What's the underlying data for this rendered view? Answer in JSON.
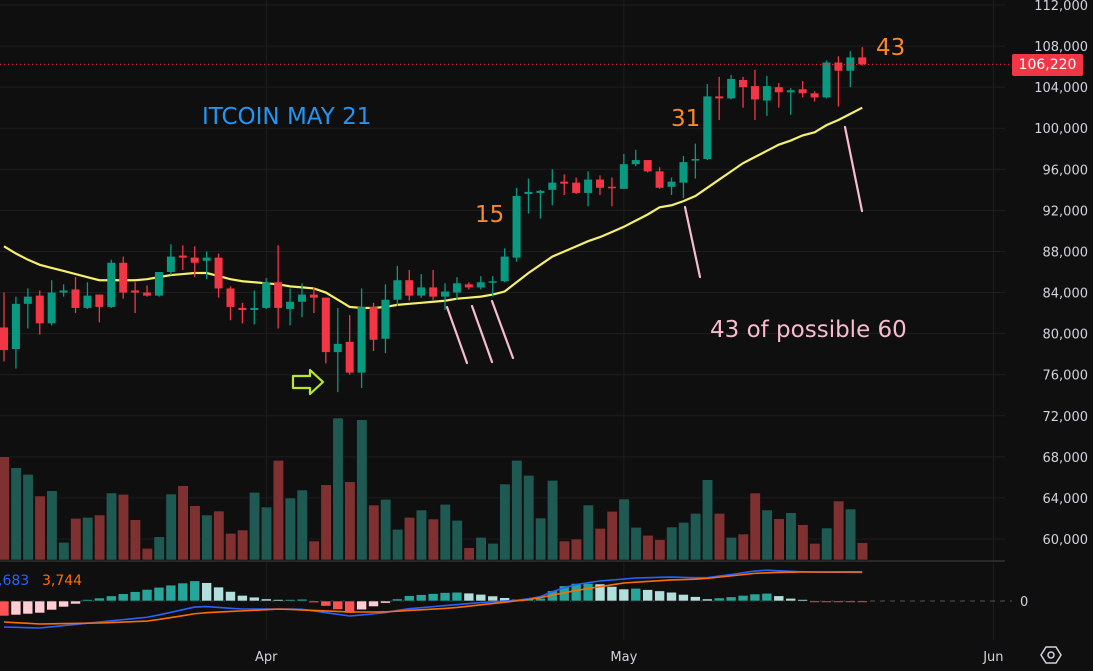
{
  "annotations": {
    "title": "ITCOIN MAY 21",
    "count_15": "15",
    "count_31": "31",
    "count_43": "43",
    "summary": "43 of possible 60"
  },
  "price_tag": "106,220",
  "macd_legend": {
    "macd": ",683",
    "signal": "3,744"
  },
  "time_axis": [
    {
      "label": "Apr",
      "candle_index": 22
    },
    {
      "label": "May",
      "candle_index": 52
    },
    {
      "label": "Jun",
      "candle_index": 83
    }
  ],
  "macd_axis_label": "0",
  "colors": {
    "up": "#089981",
    "down": "#f23645",
    "vol_up": "#1f5a52",
    "vol_down": "#7f3131",
    "ma": "#f5ef6b",
    "macd": "#2962ff",
    "signal": "#ff6d00",
    "annotation_pink": "#f8bbd0",
    "arrow": "#b8e82a"
  },
  "chart_data": {
    "type": "candlestick",
    "title": "ITCOIN MAY 21",
    "ylim": [
      60000,
      112000
    ],
    "y_ticks": [
      {
        "value": 112000,
        "label": "112,000"
      },
      {
        "value": 108000,
        "label": "108,000"
      },
      {
        "value": 104000,
        "label": "104,000"
      },
      {
        "value": 100000,
        "label": "100,000"
      },
      {
        "value": 96000,
        "label": "96,000"
      },
      {
        "value": 92000,
        "label": "92,000"
      },
      {
        "value": 88000,
        "label": "88,000"
      },
      {
        "value": 84000,
        "label": "84,000"
      },
      {
        "value": 80000,
        "label": "80,000"
      },
      {
        "value": 76000,
        "label": "76,000"
      },
      {
        "value": 72000,
        "label": "72,000"
      },
      {
        "value": 68000,
        "label": "68,000"
      },
      {
        "value": 64000,
        "label": "64,000"
      },
      {
        "value": 60000,
        "label": "60,000"
      }
    ],
    "last_price": 106220,
    "ohlc": [
      [
        80600,
        84000,
        77300,
        78400
      ],
      [
        78500,
        83600,
        76600,
        82900
      ],
      [
        82900,
        84400,
        80500,
        83600
      ],
      [
        83700,
        84200,
        79900,
        81000
      ],
      [
        81000,
        85200,
        80800,
        84000
      ],
      [
        84000,
        84800,
        83600,
        84200
      ],
      [
        84300,
        85500,
        82000,
        82500
      ],
      [
        82500,
        85000,
        82400,
        83700
      ],
      [
        83800,
        83800,
        81100,
        82600
      ],
      [
        82600,
        87200,
        82500,
        86900
      ],
      [
        86900,
        87500,
        83400,
        84000
      ],
      [
        84200,
        85000,
        82000,
        84000
      ],
      [
        84000,
        84700,
        83600,
        83700
      ],
      [
        83700,
        86000,
        83600,
        86000
      ],
      [
        86000,
        88700,
        85700,
        87500
      ],
      [
        87600,
        88600,
        86200,
        87400
      ],
      [
        87400,
        88500,
        85500,
        86900
      ],
      [
        87100,
        88000,
        85300,
        87400
      ],
      [
        87400,
        87800,
        83500,
        84400
      ],
      [
        84400,
        84600,
        81300,
        82600
      ],
      [
        82500,
        83000,
        81000,
        82300
      ],
      [
        82300,
        84200,
        80900,
        82500
      ],
      [
        82500,
        85400,
        82400,
        85000
      ],
      [
        85000,
        88600,
        80500,
        82500
      ],
      [
        82400,
        84400,
        80800,
        83100
      ],
      [
        83100,
        84900,
        81600,
        83800
      ],
      [
        83800,
        84500,
        82000,
        83500
      ],
      [
        83500,
        83500,
        77100,
        78200
      ],
      [
        78200,
        82500,
        74300,
        79000
      ],
      [
        79200,
        81800,
        76000,
        76200
      ],
      [
        76200,
        84400,
        74700,
        82600
      ],
      [
        82600,
        83000,
        78300,
        79400
      ],
      [
        79500,
        84800,
        78100,
        83300
      ],
      [
        83300,
        86600,
        82700,
        85200
      ],
      [
        85200,
        86200,
        83200,
        83700
      ],
      [
        83700,
        85800,
        83500,
        84500
      ],
      [
        84500,
        86200,
        83300,
        83600
      ],
      [
        83600,
        84900,
        82300,
        84100
      ],
      [
        84000,
        85500,
        83300,
        84900
      ],
      [
        84800,
        85000,
        84300,
        84500
      ],
      [
        84500,
        85600,
        84300,
        85000
      ],
      [
        85000,
        85600,
        83600,
        85100
      ],
      [
        85100,
        88300,
        85000,
        87500
      ],
      [
        87400,
        94200,
        87000,
        93400
      ],
      [
        93600,
        95100,
        91700,
        93800
      ],
      [
        93700,
        94000,
        91200,
        93900
      ],
      [
        94000,
        96000,
        92500,
        94700
      ],
      [
        94800,
        95500,
        93500,
        94600
      ],
      [
        94700,
        95200,
        93600,
        93700
      ],
      [
        93700,
        95800,
        92400,
        95000
      ],
      [
        95000,
        95400,
        93500,
        94200
      ],
      [
        94300,
        95200,
        92400,
        94200
      ],
      [
        94100,
        97500,
        94100,
        96500
      ],
      [
        96500,
        97900,
        96300,
        96900
      ],
      [
        96900,
        96900,
        95700,
        95800
      ],
      [
        95800,
        96200,
        94100,
        94200
      ],
      [
        94300,
        95200,
        93500,
        94800
      ],
      [
        94700,
        97300,
        93200,
        96700
      ],
      [
        96900,
        98500,
        95100,
        97000
      ],
      [
        97000,
        104300,
        96900,
        103100
      ],
      [
        103100,
        105000,
        100800,
        102900
      ],
      [
        102900,
        105200,
        102800,
        104800
      ],
      [
        104700,
        105000,
        102000,
        104000
      ],
      [
        104100,
        105700,
        100800,
        102800
      ],
      [
        102700,
        105100,
        101200,
        104100
      ],
      [
        104000,
        104400,
        102000,
        103500
      ],
      [
        103500,
        103900,
        101300,
        103700
      ],
      [
        103800,
        104600,
        103000,
        103400
      ],
      [
        103400,
        103600,
        102600,
        103000
      ],
      [
        103000,
        106600,
        102900,
        106400
      ],
      [
        106400,
        107000,
        102100,
        105600
      ],
      [
        105600,
        107500,
        104000,
        106900
      ],
      [
        106900,
        107900,
        106100,
        106220
      ]
    ],
    "volume_relative": [
      310,
      277,
      257,
      192,
      208,
      53,
      125,
      128,
      135,
      201,
      197,
      121,
      35,
      70,
      198,
      223,
      163,
      135,
      147,
      80,
      90,
      203,
      159,
      299,
      186,
      210,
      57,
      226,
      426,
      235,
      421,
      165,
      182,
      92,
      128,
      150,
      123,
      167,
      119,
      37,
      68,
      50,
      228,
      299,
      254,
      126,
      239,
      57,
      63,
      165,
      95,
      146,
      183,
      98,
      74,
      61,
      99,
      113,
      140,
      241,
      140,
      68,
      78,
      201,
      150,
      124,
      142,
      106,
      50,
      96,
      177,
      153,
      52
    ],
    "moving_average": [
      88500,
      87800,
      87200,
      86700,
      86400,
      86100,
      85800,
      85500,
      85200,
      85200,
      85200,
      85200,
      85300,
      85500,
      85700,
      85800,
      85900,
      85900,
      85600,
      85300,
      85100,
      85000,
      84900,
      84800,
      84600,
      84500,
      84400,
      84000,
      83300,
      82600,
      82500,
      82500,
      82600,
      82800,
      82900,
      83000,
      83100,
      83200,
      83400,
      83500,
      83600,
      83800,
      84100,
      85000,
      85900,
      86700,
      87500,
      88000,
      88500,
      89000,
      89400,
      89900,
      90400,
      91000,
      91600,
      92300,
      92500,
      92900,
      93400,
      94200,
      95000,
      95800,
      96600,
      97200,
      97800,
      98400,
      98800,
      99300,
      99600,
      100300,
      100800,
      101400,
      102000
    ],
    "macd": {
      "macd_points": [
        [
          0,
          -3354
        ],
        [
          3,
          -3483
        ],
        [
          8,
          -2709
        ],
        [
          12.2,
          -2064
        ],
        [
          16.4,
          -645
        ],
        [
          19.8,
          -1032
        ],
        [
          24.8,
          -1032
        ],
        [
          29,
          -1935
        ],
        [
          31.8,
          -1548
        ],
        [
          33.7,
          -1032
        ],
        [
          39.5,
          -258
        ],
        [
          43.4,
          129
        ],
        [
          45.3,
          645
        ],
        [
          46.3,
          1419
        ],
        [
          48.2,
          2193
        ],
        [
          50,
          2580
        ],
        [
          53,
          2967
        ],
        [
          55.9,
          3096
        ],
        [
          58.8,
          2967
        ],
        [
          60.7,
          3354
        ],
        [
          63.6,
          3999
        ],
        [
          67.4,
          3741
        ],
        [
          72,
          3683
        ]
      ],
      "signal_points": [
        [
          0,
          -2709
        ],
        [
          3,
          -2967
        ],
        [
          8,
          -2838
        ],
        [
          12.2,
          -2580
        ],
        [
          16.4,
          -1548
        ],
        [
          23.2,
          -1032
        ],
        [
          29,
          -1419
        ],
        [
          31.8,
          -1419
        ],
        [
          37.6,
          -903
        ],
        [
          41.4,
          -258
        ],
        [
          44.4,
          258
        ],
        [
          48.2,
          1419
        ],
        [
          52,
          2322
        ],
        [
          55.9,
          2709
        ],
        [
          58.5,
          2838
        ],
        [
          63.3,
          3612
        ],
        [
          66.5,
          3741
        ],
        [
          72,
          3744
        ]
      ]
    }
  }
}
